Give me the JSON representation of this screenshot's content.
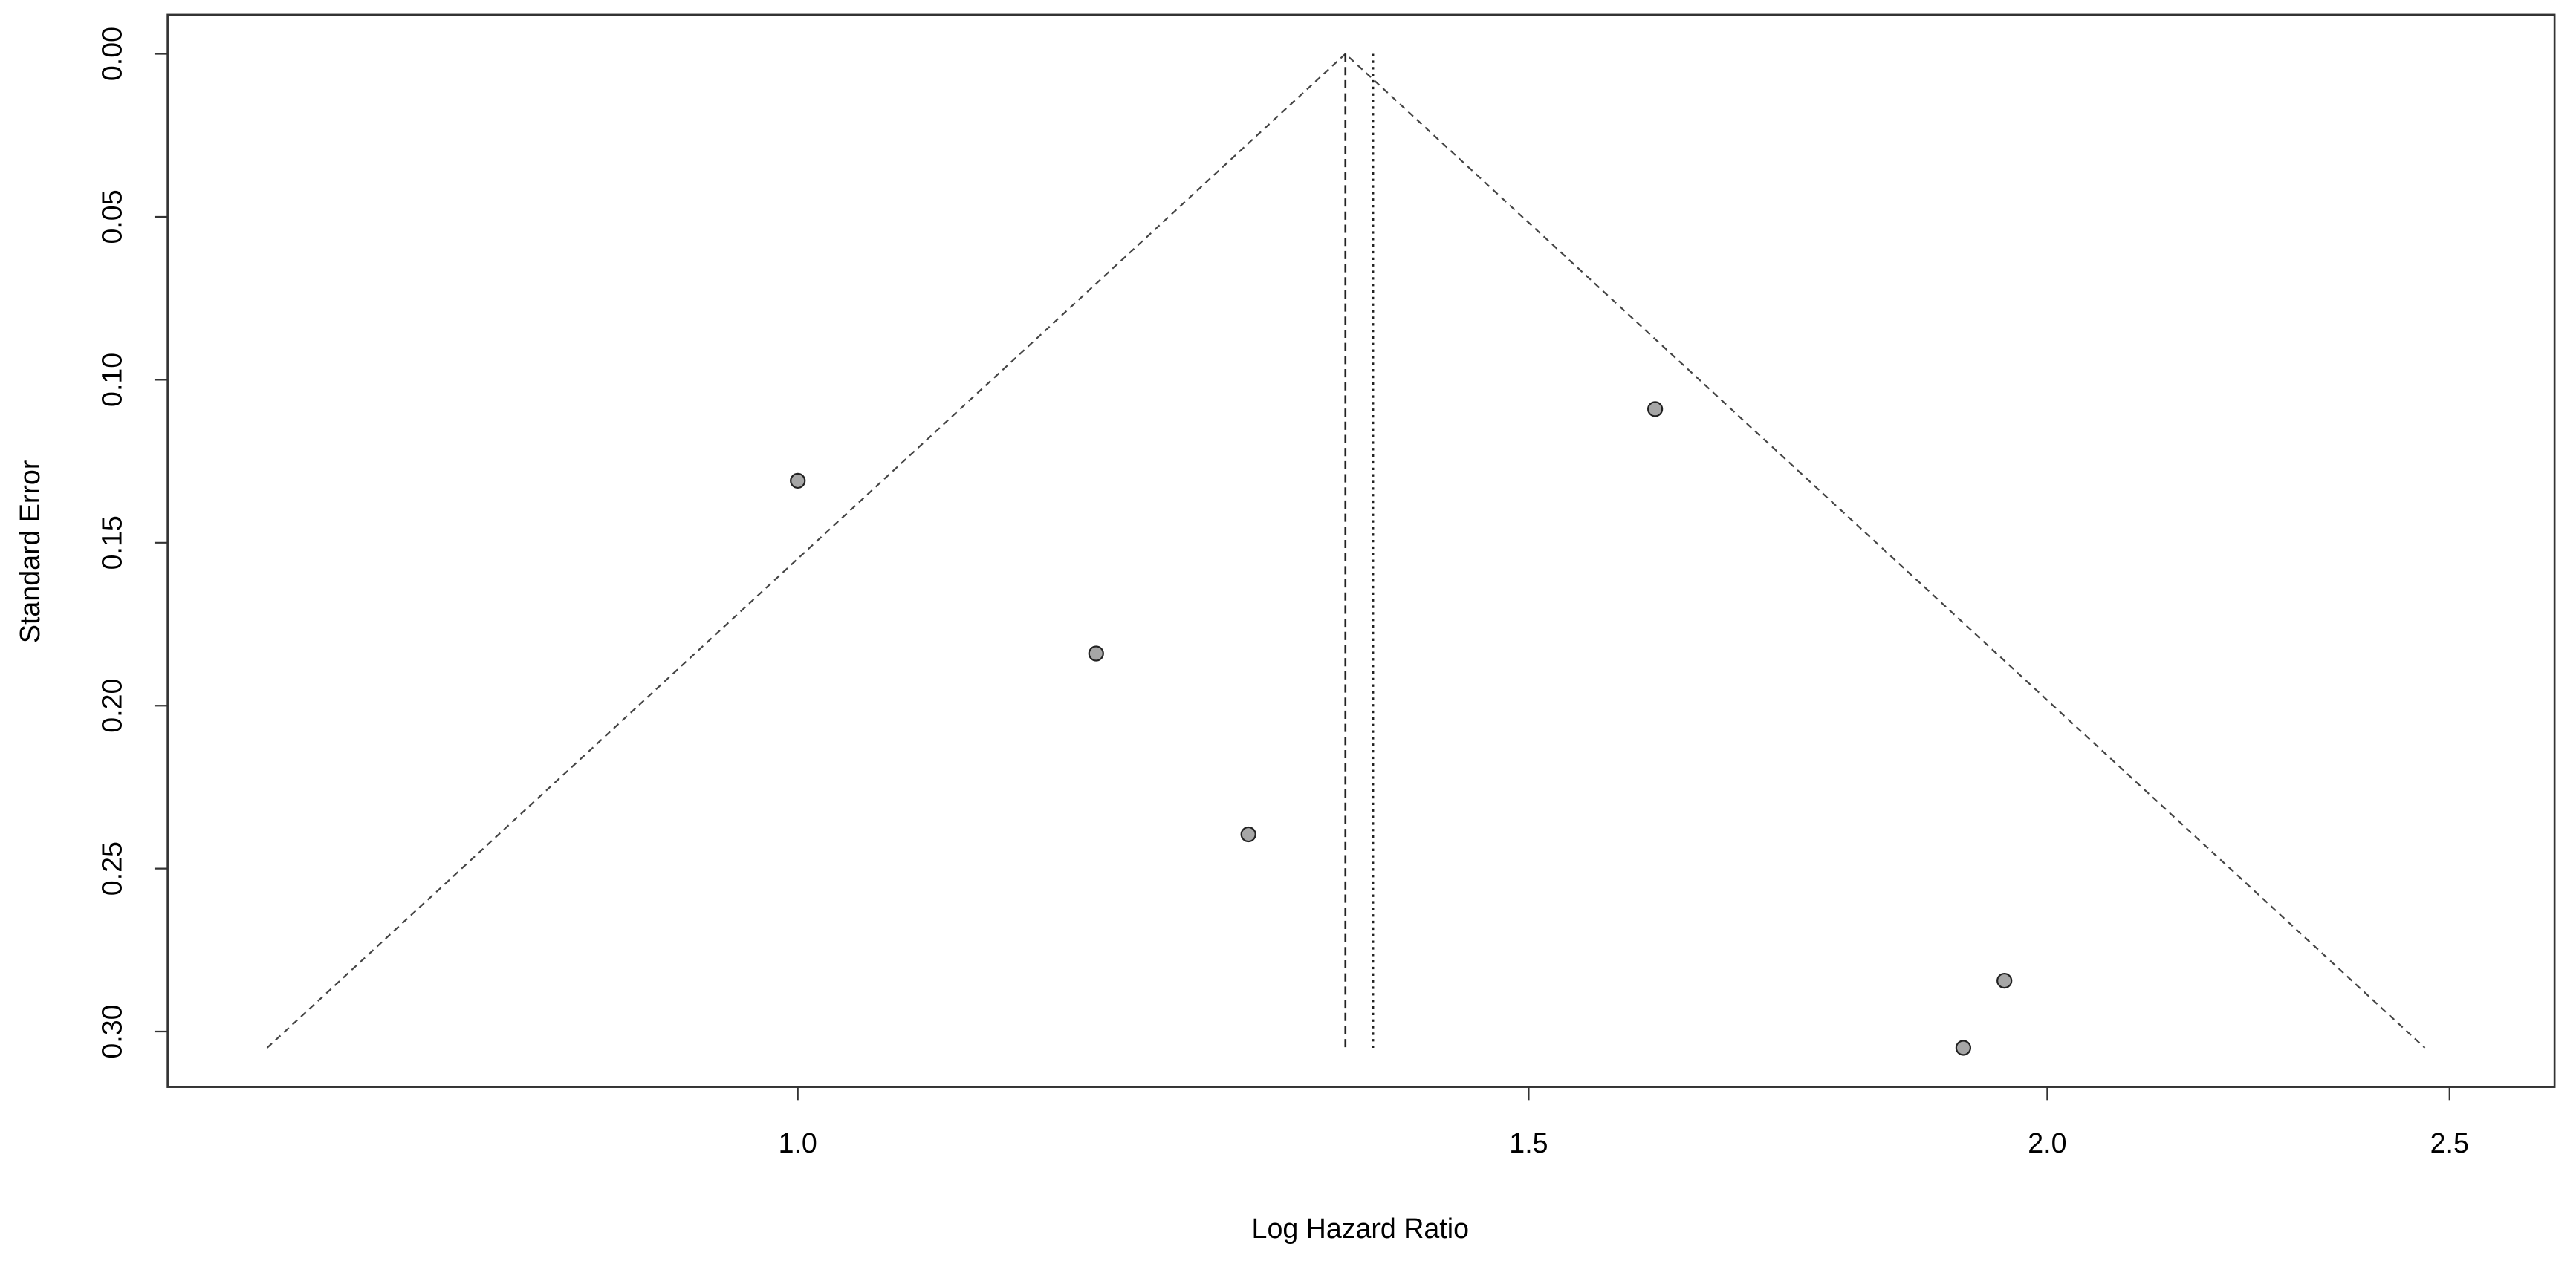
{
  "chart_data": {
    "type": "scatter",
    "x_label": "Log Hazard Ratio",
    "y_label": "Standard Error",
    "x": [
      1.0,
      1.18,
      1.284,
      1.609,
      1.953,
      1.909
    ],
    "values": [
      0.131,
      0.184,
      0.2395,
      0.109,
      0.2844,
      0.305
    ],
    "color": "#a6a6a6",
    "x_scale": "log",
    "y_reversed": true,
    "grid": false,
    "xlim": [
      0.705,
      2.65
    ],
    "ylim": [
      -0.012,
      0.317
    ],
    "xticks": [
      {
        "value": 1,
        "label": "1.0"
      },
      1.5,
      {
        "value": 2,
        "label": "2.0"
      },
      2.5
    ],
    "yticks": [
      {
        "value": 0,
        "label": "0.00"
      },
      0.05,
      {
        "value": 0.1,
        "label": "0.10"
      },
      0.15,
      {
        "value": 0.2,
        "label": "0.20"
      },
      0.25,
      {
        "value": 0.3,
        "label": "0.30"
      }
    ],
    "funnel": {
      "x": [
        0.745,
        1.355,
        2.466
      ],
      "y": [
        0.305,
        0,
        0.305
      ]
    },
    "vlines": [
      {
        "x": 1.355,
        "style": "dashed"
      },
      {
        "x": 1.376,
        "style": "dotted"
      }
    ]
  }
}
